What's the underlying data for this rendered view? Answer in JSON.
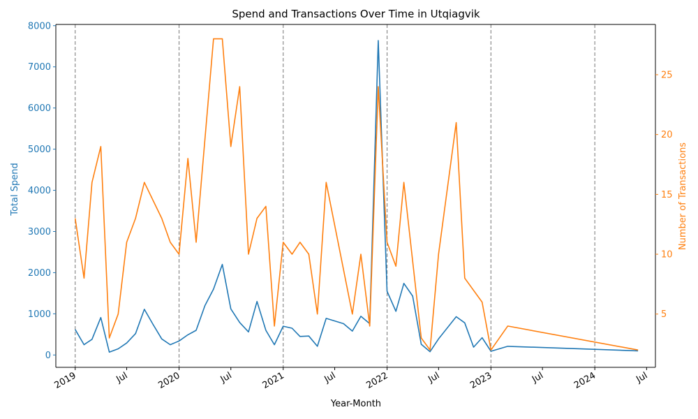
{
  "colors": {
    "spend": "#1f77b4",
    "transactions": "#ff7f0e",
    "axis": "#000000",
    "year_lines": "#808080"
  },
  "chart_data": {
    "type": "line",
    "title": "Spend and Transactions Over Time in Utqiagvik",
    "xlabel": "Year-Month",
    "y_left_label": "Total Spend",
    "y_right_label": "Number of Transactions",
    "x_range": [
      "2018-10-25",
      "2024-08-01"
    ],
    "y_left_range": [
      -300,
      8030
    ],
    "y_right_range": [
      0.55,
      29.2
    ],
    "y_left_ticks": [
      0,
      1000,
      2000,
      3000,
      4000,
      5000,
      6000,
      7000,
      8000
    ],
    "y_right_ticks": [
      5,
      10,
      15,
      20,
      25
    ],
    "x_ticks": [
      {
        "date": "2019-01-01",
        "label": "2019",
        "bold": true
      },
      {
        "date": "2019-07-01",
        "label": "Jul",
        "bold": false
      },
      {
        "date": "2020-01-01",
        "label": "2020",
        "bold": true
      },
      {
        "date": "2020-07-01",
        "label": "Jul",
        "bold": false
      },
      {
        "date": "2021-01-01",
        "label": "2021",
        "bold": true
      },
      {
        "date": "2021-07-01",
        "label": "Jul",
        "bold": false
      },
      {
        "date": "2022-01-01",
        "label": "2022",
        "bold": true
      },
      {
        "date": "2022-07-01",
        "label": "Jul",
        "bold": false
      },
      {
        "date": "2023-01-01",
        "label": "2023",
        "bold": true
      },
      {
        "date": "2023-07-01",
        "label": "Jul",
        "bold": false
      },
      {
        "date": "2024-01-01",
        "label": "2024",
        "bold": true
      },
      {
        "date": "2024-07-01",
        "label": "Jul",
        "bold": false
      }
    ],
    "year_lines": [
      "2019-01-01",
      "2020-01-01",
      "2021-01-01",
      "2022-01-01",
      "2023-01-01",
      "2024-01-01"
    ],
    "grid": false,
    "series": [
      {
        "name": "Total Spend",
        "axis": "left",
        "points": [
          [
            "2019-01-01",
            620
          ],
          [
            "2019-02-01",
            250
          ],
          [
            "2019-03-01",
            380
          ],
          [
            "2019-04-01",
            910
          ],
          [
            "2019-05-01",
            70
          ],
          [
            "2019-06-01",
            150
          ],
          [
            "2019-07-01",
            290
          ],
          [
            "2019-08-01",
            520
          ],
          [
            "2019-09-01",
            1110
          ],
          [
            "2019-10-01",
            750
          ],
          [
            "2019-11-01",
            390
          ],
          [
            "2019-12-01",
            250
          ],
          [
            "2020-01-01",
            340
          ],
          [
            "2020-02-01",
            490
          ],
          [
            "2020-03-01",
            600
          ],
          [
            "2020-04-01",
            1200
          ],
          [
            "2020-05-01",
            1600
          ],
          [
            "2020-06-01",
            2200
          ],
          [
            "2020-07-01",
            1120
          ],
          [
            "2020-08-01",
            790
          ],
          [
            "2020-09-01",
            560
          ],
          [
            "2020-10-01",
            1300
          ],
          [
            "2020-11-01",
            600
          ],
          [
            "2020-12-01",
            250
          ],
          [
            "2021-01-01",
            700
          ],
          [
            "2021-02-01",
            650
          ],
          [
            "2021-03-01",
            450
          ],
          [
            "2021-04-01",
            460
          ],
          [
            "2021-05-01",
            210
          ],
          [
            "2021-06-01",
            890
          ],
          [
            "2021-08-01",
            760
          ],
          [
            "2021-09-01",
            580
          ],
          [
            "2021-10-01",
            940
          ],
          [
            "2021-11-01",
            760
          ],
          [
            "2021-12-01",
            7640
          ],
          [
            "2022-01-01",
            1550
          ],
          [
            "2022-02-01",
            1060
          ],
          [
            "2022-03-01",
            1740
          ],
          [
            "2022-04-01",
            1430
          ],
          [
            "2022-05-01",
            260
          ],
          [
            "2022-06-01",
            80
          ],
          [
            "2022-07-01",
            390
          ],
          [
            "2022-09-01",
            930
          ],
          [
            "2022-10-01",
            780
          ],
          [
            "2022-11-01",
            190
          ],
          [
            "2022-12-01",
            420
          ],
          [
            "2023-01-01",
            90
          ],
          [
            "2023-03-01",
            210
          ],
          [
            "2024-06-01",
            100
          ]
        ]
      },
      {
        "name": "Number of Transactions",
        "axis": "right",
        "points": [
          [
            "2019-01-01",
            13
          ],
          [
            "2019-02-01",
            8
          ],
          [
            "2019-03-01",
            16
          ],
          [
            "2019-04-01",
            19
          ],
          [
            "2019-05-01",
            3
          ],
          [
            "2019-06-01",
            5
          ],
          [
            "2019-07-01",
            11
          ],
          [
            "2019-08-01",
            13
          ],
          [
            "2019-09-01",
            16
          ],
          [
            "2019-11-01",
            13
          ],
          [
            "2019-12-01",
            11
          ],
          [
            "2020-01-01",
            10
          ],
          [
            "2020-02-01",
            18
          ],
          [
            "2020-03-01",
            11
          ],
          [
            "2020-05-01",
            28
          ],
          [
            "2020-06-01",
            28
          ],
          [
            "2020-07-01",
            19
          ],
          [
            "2020-08-01",
            24
          ],
          [
            "2020-09-01",
            10
          ],
          [
            "2020-10-01",
            13
          ],
          [
            "2020-11-01",
            14
          ],
          [
            "2020-12-01",
            4
          ],
          [
            "2021-01-01",
            11
          ],
          [
            "2021-02-01",
            10
          ],
          [
            "2021-03-01",
            11
          ],
          [
            "2021-04-01",
            10
          ],
          [
            "2021-05-01",
            5
          ],
          [
            "2021-06-01",
            16
          ],
          [
            "2021-09-01",
            5
          ],
          [
            "2021-10-01",
            10
          ],
          [
            "2021-11-01",
            4
          ],
          [
            "2021-12-01",
            24
          ],
          [
            "2022-01-01",
            11
          ],
          [
            "2022-02-01",
            9
          ],
          [
            "2022-03-01",
            16
          ],
          [
            "2022-05-01",
            3
          ],
          [
            "2022-06-01",
            2
          ],
          [
            "2022-07-01",
            10
          ],
          [
            "2022-09-01",
            21
          ],
          [
            "2022-10-01",
            8
          ],
          [
            "2022-12-01",
            6
          ],
          [
            "2023-01-01",
            2
          ],
          [
            "2023-03-01",
            4
          ],
          [
            "2024-06-01",
            2
          ]
        ]
      }
    ]
  }
}
